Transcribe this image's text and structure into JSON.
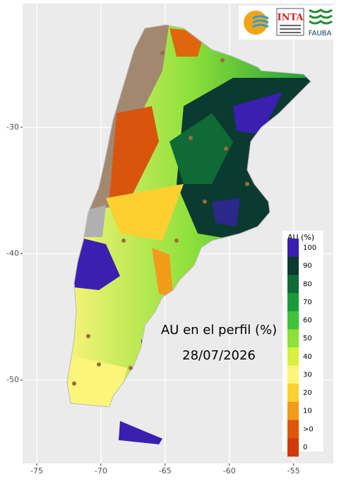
{
  "map": {
    "xlim": [
      -76.1,
      -51.9
    ],
    "xticks": [
      -75,
      -70,
      -65,
      -60,
      -55
    ],
    "ylim": [
      -56.6,
      -20.2
    ],
    "yticks": [
      -50,
      -40,
      -30
    ],
    "annotation": "AU en el perfil (%)",
    "date": "28/07/2026",
    "legend": {
      "title": "AU (%)",
      "items": [
        {
          "label": "100",
          "color": "#3a1fb0"
        },
        {
          "label": "90",
          "color": "#0b3a30"
        },
        {
          "label": "80",
          "color": "#0f6a35"
        },
        {
          "label": "70",
          "color": "#1a9a3a"
        },
        {
          "label": "60",
          "color": "#3fc23a"
        },
        {
          "label": "50",
          "color": "#8ee03a"
        },
        {
          "label": "40",
          "color": "#d8f040"
        },
        {
          "label": "30",
          "color": "#fbf57a"
        },
        {
          "label": "20",
          "color": "#fbd030"
        },
        {
          "label": "10",
          "color": "#f29a1a"
        },
        {
          "label": ">0",
          "color": "#e0550e"
        },
        {
          "label": "0",
          "color": "#d03a08"
        }
      ]
    },
    "logos": {
      "inta": "INTA",
      "fauba": "FAUBA"
    }
  }
}
